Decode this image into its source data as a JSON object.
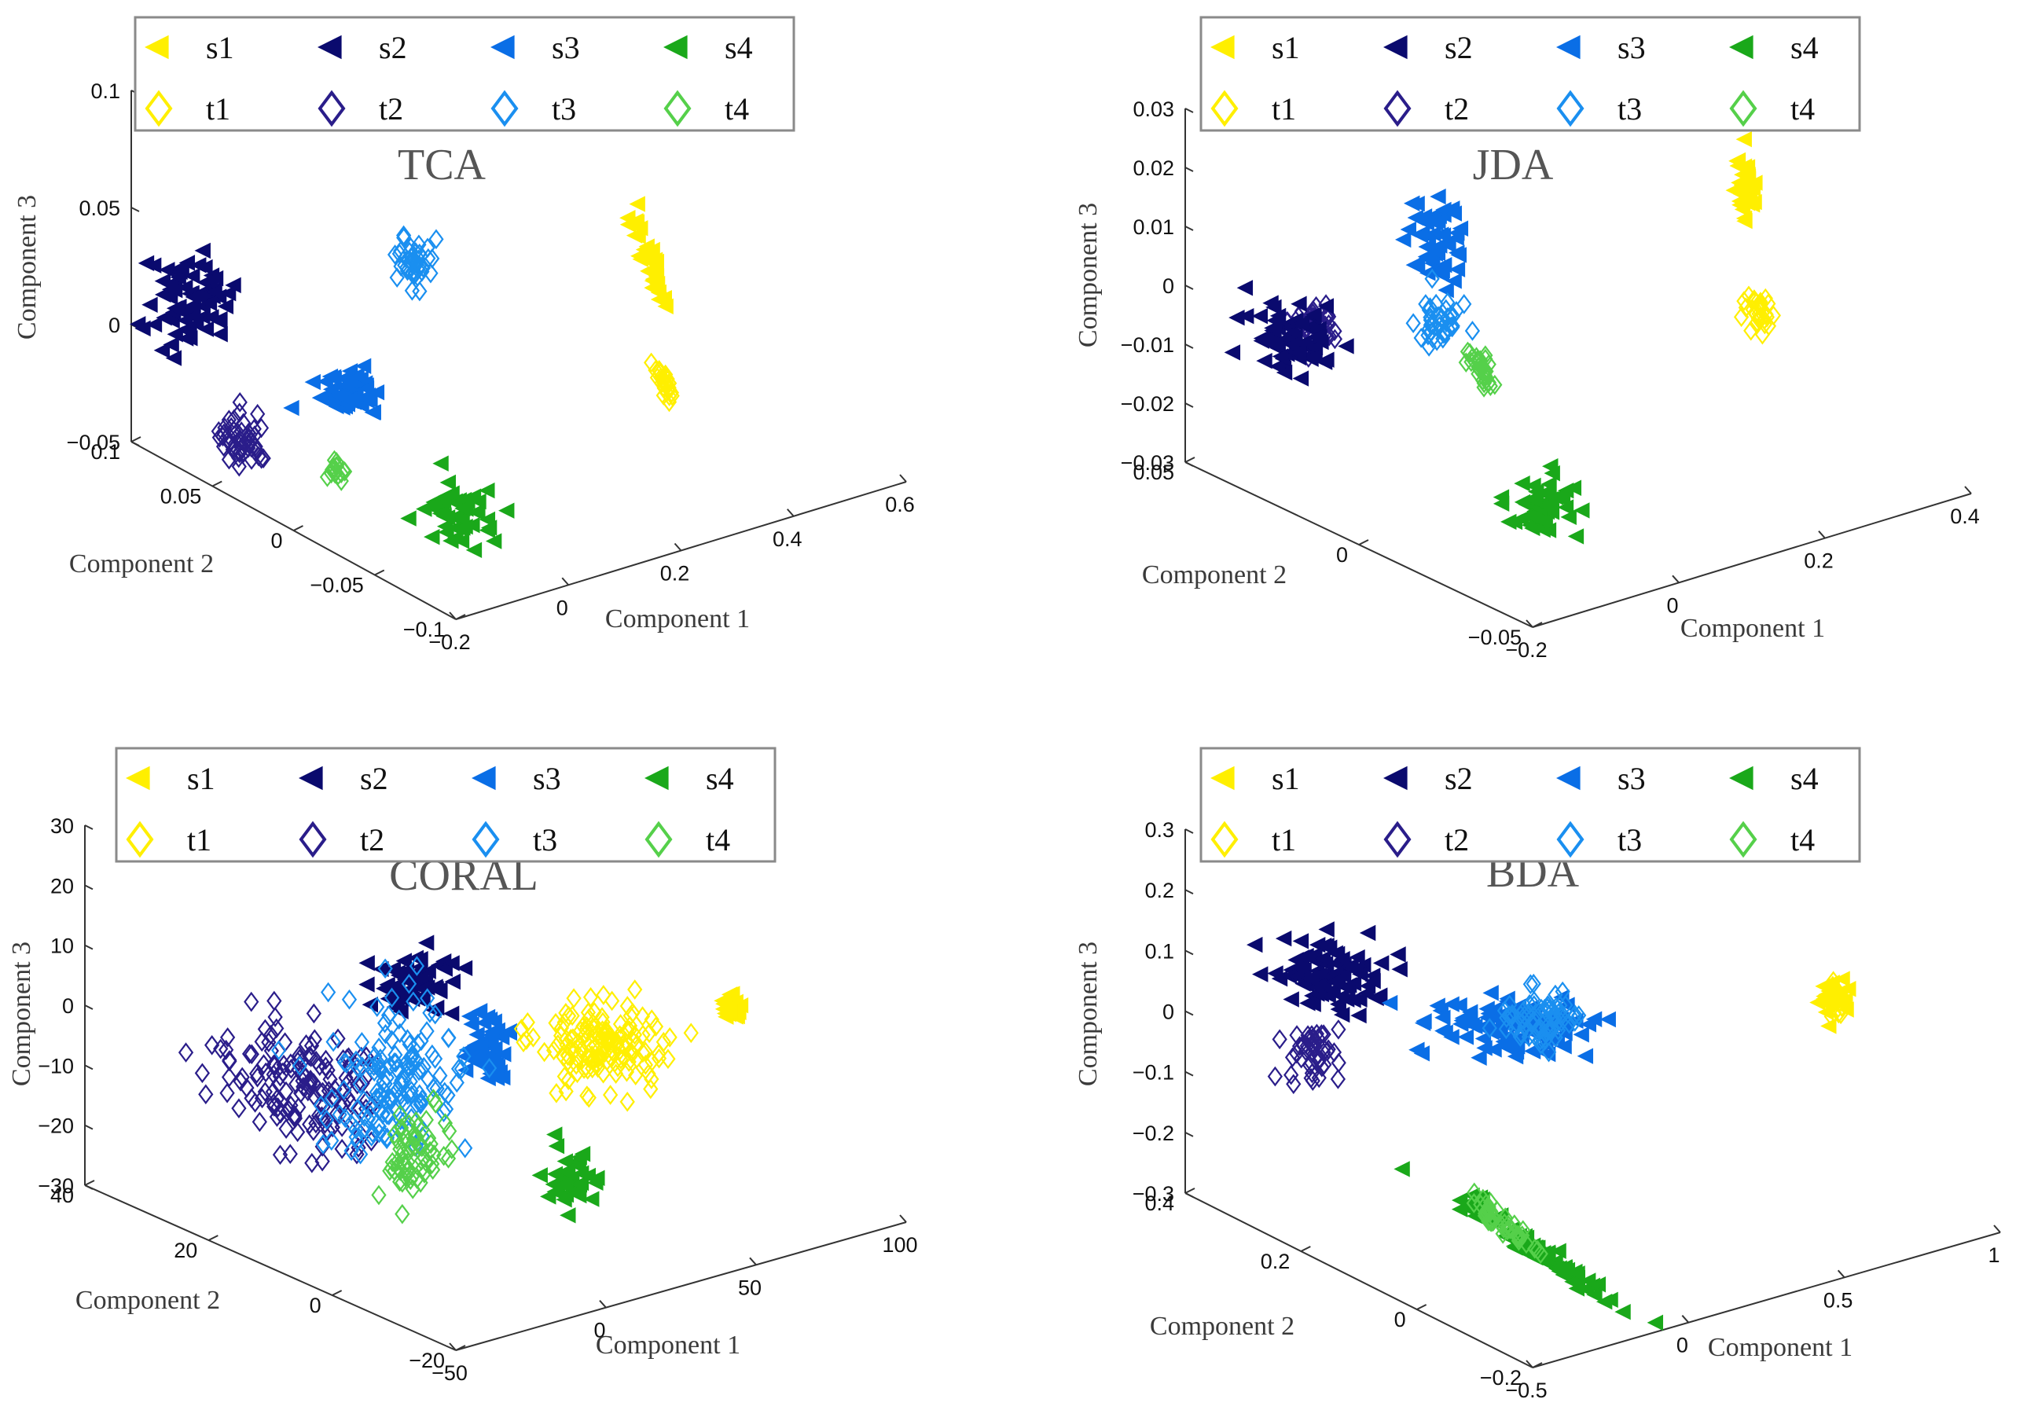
{
  "colors": {
    "s1": "#ffef00",
    "s2": "#0a0a6e",
    "s3": "#0a6ee6",
    "s4": "#1aa81a",
    "t1": "#ffef00",
    "t2": "#2a1d8a",
    "t3": "#1a8ff0",
    "t4": "#55d04a",
    "axis": "#333333",
    "title": "#555555"
  },
  "legend": {
    "entries": [
      {
        "key": "s1",
        "label": "s1",
        "marker": "triangle-left"
      },
      {
        "key": "s2",
        "label": "s2",
        "marker": "triangle-left"
      },
      {
        "key": "s3",
        "label": "s3",
        "marker": "triangle-left"
      },
      {
        "key": "s4",
        "label": "s4",
        "marker": "triangle-left"
      },
      {
        "key": "t1",
        "label": "t1",
        "marker": "diamond"
      },
      {
        "key": "t2",
        "label": "t2",
        "marker": "diamond"
      },
      {
        "key": "t3",
        "label": "t3",
        "marker": "diamond"
      },
      {
        "key": "t4",
        "label": "t4",
        "marker": "diamond"
      }
    ]
  },
  "chart_data": [
    {
      "type": "scatter",
      "title": "TCA",
      "xlabel": "Component 1",
      "ylabel": "Component 2",
      "zlabel": "Component 3",
      "xticks": [
        "−0.2",
        "0",
        "0.2",
        "0.4",
        "0.6"
      ],
      "yticks": [
        "0.1",
        "0.05",
        "0",
        "−0.05",
        "−0.1"
      ],
      "zticks": [
        "0.1",
        "0.05",
        "0",
        "−0.05"
      ],
      "xlim": [
        -0.2,
        0.6
      ],
      "ylim": [
        -0.1,
        0.1
      ],
      "zlim": [
        -0.05,
        0.1
      ],
      "clusters": [
        {
          "series": "s1",
          "x": 0.52,
          "y": 0.05,
          "z": 0.03
        },
        {
          "series": "t1",
          "x": 0.5,
          "y": -0.02,
          "z": -0.02
        },
        {
          "series": "s2",
          "x": 0.02,
          "y": 0.09,
          "z": 0.02
        },
        {
          "series": "t2",
          "x": 0.05,
          "y": 0.04,
          "z": -0.04
        },
        {
          "series": "s3",
          "x": 0.18,
          "y": 0.03,
          "z": -0.02
        },
        {
          "series": "t3",
          "x": 0.3,
          "y": 0.08,
          "z": 0.04
        },
        {
          "series": "s4",
          "x": 0.32,
          "y": -0.06,
          "z": -0.04
        },
        {
          "series": "t4",
          "x": 0.2,
          "y": -0.02,
          "z": -0.05
        }
      ]
    },
    {
      "type": "scatter",
      "title": "JDA",
      "xlabel": "Component 1",
      "ylabel": "Component 2",
      "zlabel": "Component 3",
      "xticks": [
        "−0.2",
        "0",
        "0.2",
        "0.4"
      ],
      "yticks": [
        "0.05",
        "0",
        "−0.05"
      ],
      "zticks": [
        "0.03",
        "0.02",
        "0.01",
        "0",
        "−0.01",
        "−0.02",
        "−0.03"
      ],
      "xlim": [
        -0.2,
        0.4
      ],
      "ylim": [
        -0.05,
        0.05
      ],
      "zlim": [
        -0.03,
        0.03
      ],
      "clusters": [
        {
          "series": "s1",
          "x": 0.34,
          "y": 0.03,
          "z": 0.01
        },
        {
          "series": "t1",
          "x": 0.33,
          "y": 0.02,
          "z": -0.005
        },
        {
          "series": "s2",
          "x": -0.08,
          "y": 0.04,
          "z": -0.005
        },
        {
          "series": "t2",
          "x": -0.06,
          "y": 0.04,
          "z": -0.003
        },
        {
          "series": "s3",
          "x": 0.1,
          "y": 0.03,
          "z": 0.01
        },
        {
          "series": "t3",
          "x": 0.1,
          "y": 0.02,
          "z": -0.005
        },
        {
          "series": "s4",
          "x": 0.15,
          "y": -0.02,
          "z": -0.02
        },
        {
          "series": "t4",
          "x": 0.14,
          "y": 0.01,
          "z": -0.01
        }
      ]
    },
    {
      "type": "scatter",
      "title": "CORAL",
      "xlabel": "Component 1",
      "ylabel": "Component 2",
      "zlabel": "Component 3",
      "xticks": [
        "−50",
        "0",
        "50",
        "100"
      ],
      "yticks": [
        "40",
        "20",
        "0",
        "−20"
      ],
      "zticks": [
        "30",
        "20",
        "10",
        "0",
        "−10",
        "−20",
        "−30"
      ],
      "xlim": [
        -50,
        100
      ],
      "ylim": [
        -20,
        40
      ],
      "zlim": [
        -30,
        30
      ],
      "clusters": [
        {
          "series": "s1",
          "x": 80,
          "y": 30,
          "z": 10
        },
        {
          "series": "t1",
          "x": 40,
          "y": 10,
          "z": -5
        },
        {
          "series": "s2",
          "x": 5,
          "y": 25,
          "z": 10
        },
        {
          "series": "t2",
          "x": -20,
          "y": 20,
          "z": -10
        },
        {
          "series": "s3",
          "x": 20,
          "y": 10,
          "z": -5
        },
        {
          "series": "t3",
          "x": -5,
          "y": 10,
          "z": -10
        },
        {
          "series": "s4",
          "x": 30,
          "y": -15,
          "z": -20
        },
        {
          "series": "t4",
          "x": -5,
          "y": 5,
          "z": -20
        }
      ]
    },
    {
      "type": "scatter",
      "title": "BDA",
      "xlabel": "Component 1",
      "ylabel": "Component 2",
      "zlabel": "Component 3",
      "xticks": [
        "−0.5",
        "0",
        "0.5",
        "1"
      ],
      "yticks": [
        "0.4",
        "0.2",
        "0",
        "−0.2"
      ],
      "zticks": [
        "0.3",
        "0.2",
        "0.1",
        "0",
        "−0.1",
        "−0.2",
        "−0.3"
      ],
      "xlim": [
        -0.5,
        1
      ],
      "ylim": [
        -0.2,
        0.4
      ],
      "zlim": [
        -0.3,
        0.3
      ],
      "clusters": [
        {
          "series": "s1",
          "x": 0.8,
          "y": 0.3,
          "z": 0.05
        },
        {
          "series": "t1",
          "x": 0.8,
          "y": 0.3,
          "z": 0.05
        },
        {
          "series": "s2",
          "x": -0.2,
          "y": 0.3,
          "z": 0.05
        },
        {
          "series": "t2",
          "x": -0.2,
          "y": 0.3,
          "z": -0.05
        },
        {
          "series": "s3",
          "x": 0.3,
          "y": 0.2,
          "z": 0.0
        },
        {
          "series": "t3",
          "x": 0.35,
          "y": 0.2,
          "z": 0.0
        },
        {
          "series": "s4",
          "x": 0.2,
          "y": -0.1,
          "z": -0.25
        },
        {
          "series": "t4",
          "x": 0.1,
          "y": -0.05,
          "z": -0.2
        }
      ]
    }
  ]
}
